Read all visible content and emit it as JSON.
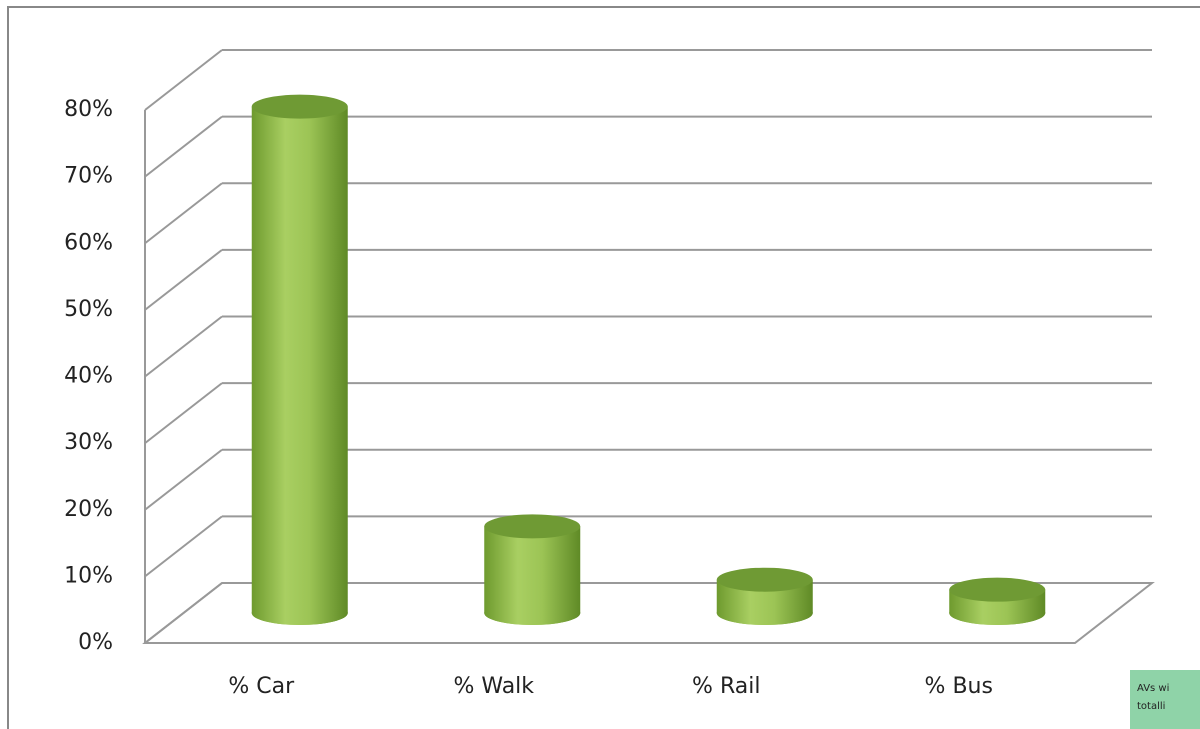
{
  "chart_data": {
    "type": "cylinder3d",
    "categories": [
      "% Car",
      "% Walk",
      "% Rail",
      "% Bus"
    ],
    "values": [
      76,
      13,
      5,
      3.5
    ],
    "color": "#8cb545",
    "ylim": [
      0,
      80
    ],
    "yticks": [
      {
        "value": 0,
        "label": "0%"
      },
      {
        "value": 10,
        "label": "10%"
      },
      {
        "value": 20,
        "label": "20%"
      },
      {
        "value": 30,
        "label": "30%"
      },
      {
        "value": 40,
        "label": "40%"
      },
      {
        "value": 50,
        "label": "50%"
      },
      {
        "value": 60,
        "label": "60%"
      },
      {
        "value": 70,
        "label": "70%"
      },
      {
        "value": 80,
        "label": "80%"
      }
    ],
    "grid": true,
    "annotation": [
      "AVs wi",
      "totalli"
    ]
  }
}
